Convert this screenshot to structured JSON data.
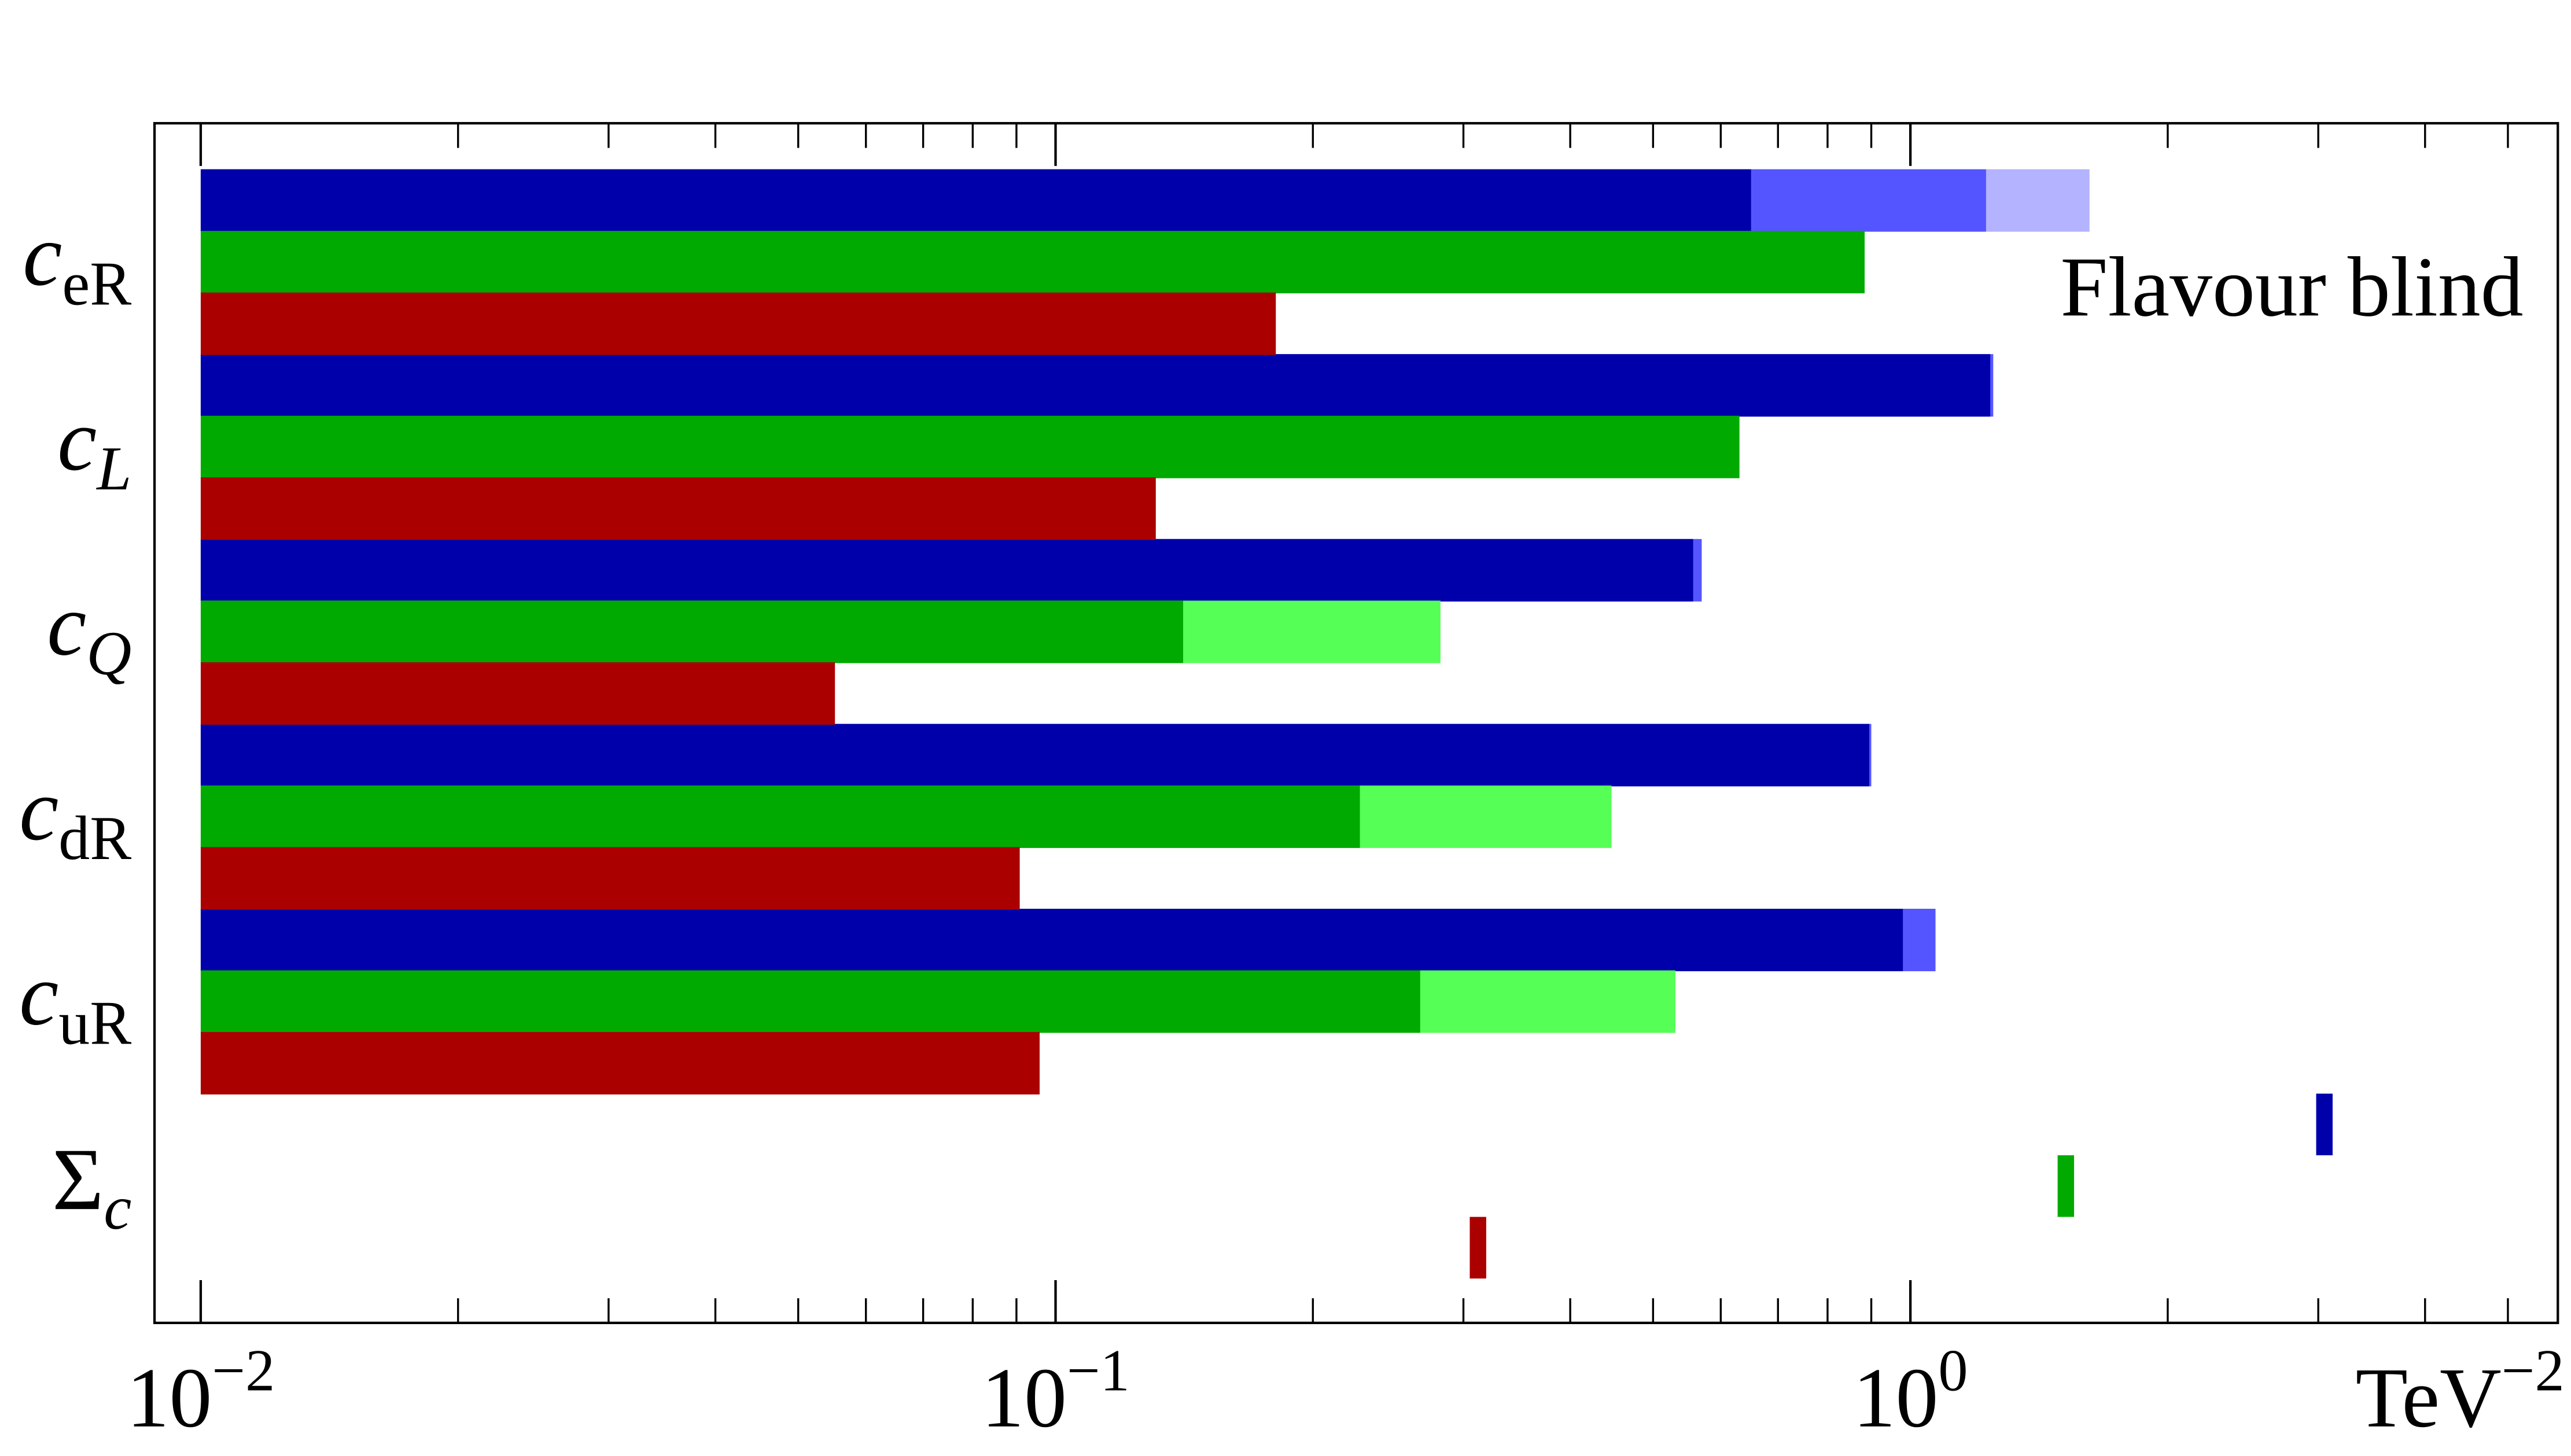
{
  "chart_data": {
    "type": "bar",
    "orientation": "horizontal",
    "annotation": "Flavour blind",
    "x_label": "TeV−2",
    "categories": [
      "ceR",
      "cL",
      "cQ",
      "cdR",
      "cuR",
      "Σc"
    ],
    "xscale": "log",
    "xlim": [
      0.00883,
      5.72
    ],
    "xticks": [
      {
        "value": 0.01,
        "label": "10−2"
      },
      {
        "value": 0.1,
        "label": "10−1"
      },
      {
        "value": 1,
        "label": "100"
      }
    ],
    "xminor": [
      0.02,
      0.03,
      0.04,
      0.05,
      0.06,
      0.07,
      0.08,
      0.09,
      0.2,
      0.3,
      0.4,
      0.5,
      0.6,
      0.7,
      0.8,
      0.9,
      2,
      3,
      4,
      5
    ],
    "series": [
      {
        "segments": [
          {
            "color": "#b3b3ff",
            "values": [
              1.62,
              null,
              null,
              null,
              null,
              null
            ]
          },
          {
            "color": "#5555ff",
            "values": [
              1.226,
              1.25,
              0.57,
              0.9,
              1.07,
              null
            ]
          },
          {
            "color": "#0000aa",
            "values": [
              0.651,
              1.24,
              0.557,
              0.895,
              0.98,
              null
            ]
          }
        ],
        "total": 3.05,
        "total_color": "#0000aa"
      },
      {
        "segments": [
          {
            "color": "#55ff55",
            "values": [
              null,
              null,
              0.282,
              0.447,
              0.531,
              null
            ]
          },
          {
            "color": "#00aa00",
            "values": [
              0.884,
              0.631,
              0.141,
              0.227,
              0.267,
              null
            ]
          }
        ],
        "total": 1.52,
        "total_color": "#00aa00"
      },
      {
        "segments": [
          {
            "color": "#aa0000",
            "values": [
              0.181,
              0.131,
              0.0552,
              0.0908,
              0.0958,
              null
            ]
          }
        ],
        "total": 0.312,
        "total_color": "#aa0000"
      }
    ]
  }
}
